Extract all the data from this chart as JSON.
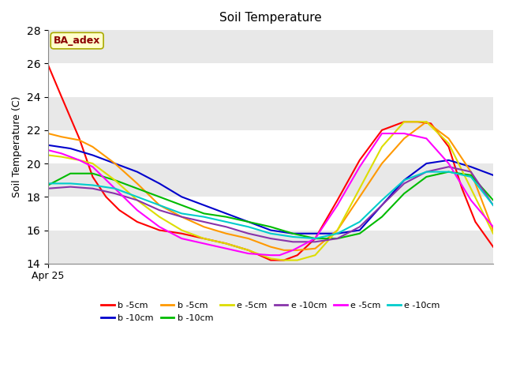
{
  "title": "Soil Temperature",
  "ylabel": "Soil Temperature (C)",
  "xlabel": "Apr 25",
  "ylim": [
    14,
    28
  ],
  "figure_bg": "#ffffff",
  "plot_bg": "#ffffff",
  "band_colors": [
    "#e8e8e8",
    "#ffffff"
  ],
  "annotation_text": "BA_adex",
  "annotation_box_color": "#ffffcc",
  "annotation_text_color": "#8b0000",
  "legend_entries": [
    {
      "label": "b -5cm",
      "color": "#ff0000"
    },
    {
      "label": "b -10cm",
      "color": "#0000cc"
    },
    {
      "label": "b -5cm",
      "color": "#ff9900"
    },
    {
      "label": "b -10cm",
      "color": "#00bb00"
    },
    {
      "label": "e -5cm",
      "color": "#dddd00"
    },
    {
      "label": "e -10cm",
      "color": "#8833aa"
    },
    {
      "label": "e -5cm",
      "color": "#ff00ff"
    },
    {
      "label": "e -10cm",
      "color": "#00cccc"
    }
  ],
  "series": [
    {
      "label": "b -5cm",
      "color": "#ff0000",
      "x": [
        0,
        0.3,
        0.7,
        1.0,
        1.3,
        1.6,
        2.0,
        2.5,
        3.0,
        3.5,
        4.0,
        4.5,
        5.0,
        5.3,
        5.6,
        6.0,
        6.5,
        7.0,
        7.5,
        8.0,
        8.3,
        8.6,
        9.0,
        9.3,
        9.6,
        10.0
      ],
      "y": [
        25.9,
        24.0,
        21.5,
        19.2,
        18.0,
        17.2,
        16.5,
        16.0,
        15.8,
        15.5,
        15.2,
        14.8,
        14.2,
        14.2,
        14.5,
        15.5,
        17.8,
        20.2,
        22.0,
        22.5,
        22.5,
        22.4,
        21.0,
        18.5,
        16.5,
        15.0
      ]
    },
    {
      "label": "b -10cm",
      "color": "#0000cc",
      "x": [
        0,
        0.5,
        1.0,
        1.5,
        2.0,
        2.5,
        3.0,
        3.5,
        4.0,
        4.5,
        5.0,
        5.5,
        6.0,
        6.5,
        7.0,
        7.5,
        8.0,
        8.5,
        9.0,
        9.5,
        10.0
      ],
      "y": [
        21.1,
        20.9,
        20.5,
        20.0,
        19.5,
        18.8,
        18.0,
        17.5,
        17.0,
        16.5,
        16.0,
        15.8,
        15.8,
        15.8,
        16.0,
        17.5,
        19.0,
        20.0,
        20.2,
        19.8,
        19.3
      ]
    },
    {
      "label": "b -5cm",
      "color": "#ff9900",
      "x": [
        0,
        0.3,
        0.7,
        1.0,
        1.5,
        2.0,
        2.5,
        3.0,
        3.5,
        4.0,
        4.5,
        5.0,
        5.3,
        5.6,
        6.0,
        6.5,
        7.0,
        7.5,
        8.0,
        8.5,
        9.0,
        9.5,
        10.0
      ],
      "y": [
        21.8,
        21.6,
        21.4,
        21.0,
        20.0,
        18.8,
        17.5,
        16.8,
        16.2,
        15.8,
        15.5,
        15.0,
        14.8,
        14.8,
        14.9,
        16.0,
        18.0,
        20.0,
        21.5,
        22.5,
        21.5,
        19.5,
        16.0
      ]
    },
    {
      "label": "b -10cm",
      "color": "#00bb00",
      "x": [
        0,
        0.5,
        1.0,
        1.5,
        2.0,
        2.5,
        3.0,
        3.5,
        4.0,
        4.5,
        5.0,
        5.5,
        6.0,
        6.5,
        7.0,
        7.5,
        8.0,
        8.5,
        9.0,
        9.5,
        10.0
      ],
      "y": [
        18.7,
        19.4,
        19.4,
        19.0,
        18.5,
        18.0,
        17.5,
        17.0,
        16.8,
        16.5,
        16.2,
        15.8,
        15.5,
        15.5,
        15.8,
        16.8,
        18.2,
        19.2,
        19.5,
        19.3,
        17.8
      ]
    },
    {
      "label": "e -5cm",
      "color": "#dddd00",
      "x": [
        0,
        0.3,
        0.7,
        1.0,
        1.5,
        2.0,
        2.5,
        3.0,
        3.5,
        4.0,
        4.5,
        5.0,
        5.3,
        5.6,
        6.0,
        6.5,
        7.0,
        7.5,
        8.0,
        8.5,
        9.0,
        9.5,
        10.0
      ],
      "y": [
        20.5,
        20.4,
        20.2,
        20.0,
        19.0,
        17.8,
        16.8,
        16.0,
        15.5,
        15.2,
        14.8,
        14.3,
        14.2,
        14.2,
        14.5,
        16.0,
        18.5,
        21.0,
        22.5,
        22.5,
        21.2,
        18.5,
        15.8
      ]
    },
    {
      "label": "e -10cm",
      "color": "#8833aa",
      "x": [
        0,
        0.5,
        1.0,
        1.5,
        2.0,
        2.5,
        3.0,
        3.5,
        4.0,
        4.5,
        5.0,
        5.5,
        6.0,
        6.5,
        7.0,
        7.5,
        8.0,
        8.5,
        9.0,
        9.5,
        10.0
      ],
      "y": [
        18.5,
        18.6,
        18.5,
        18.2,
        17.8,
        17.2,
        16.8,
        16.5,
        16.2,
        15.8,
        15.5,
        15.3,
        15.3,
        15.5,
        16.2,
        17.5,
        18.8,
        19.5,
        19.8,
        19.5,
        17.5
      ]
    },
    {
      "label": "e -5cm",
      "color": "#ff00ff",
      "x": [
        0,
        0.3,
        0.7,
        1.0,
        1.5,
        2.0,
        2.5,
        3.0,
        3.5,
        4.0,
        4.5,
        5.0,
        5.2,
        5.5,
        6.0,
        6.5,
        7.0,
        7.5,
        8.0,
        8.5,
        9.0,
        9.5,
        10.0
      ],
      "y": [
        20.8,
        20.6,
        20.2,
        19.8,
        18.5,
        17.2,
        16.2,
        15.5,
        15.2,
        14.9,
        14.6,
        14.5,
        14.5,
        14.8,
        15.5,
        17.5,
        19.8,
        21.8,
        21.8,
        21.5,
        20.0,
        17.8,
        16.2
      ]
    },
    {
      "label": "e -10cm",
      "color": "#00cccc",
      "x": [
        0,
        0.5,
        1.0,
        1.5,
        2.0,
        2.5,
        3.0,
        3.5,
        4.0,
        4.5,
        5.0,
        5.5,
        6.0,
        6.5,
        7.0,
        7.5,
        8.0,
        8.5,
        9.0,
        9.5,
        10.0
      ],
      "y": [
        18.8,
        18.8,
        18.7,
        18.5,
        18.0,
        17.5,
        17.0,
        16.8,
        16.5,
        16.2,
        15.8,
        15.6,
        15.5,
        15.8,
        16.5,
        17.8,
        19.0,
        19.5,
        19.5,
        19.2,
        17.5
      ]
    }
  ]
}
